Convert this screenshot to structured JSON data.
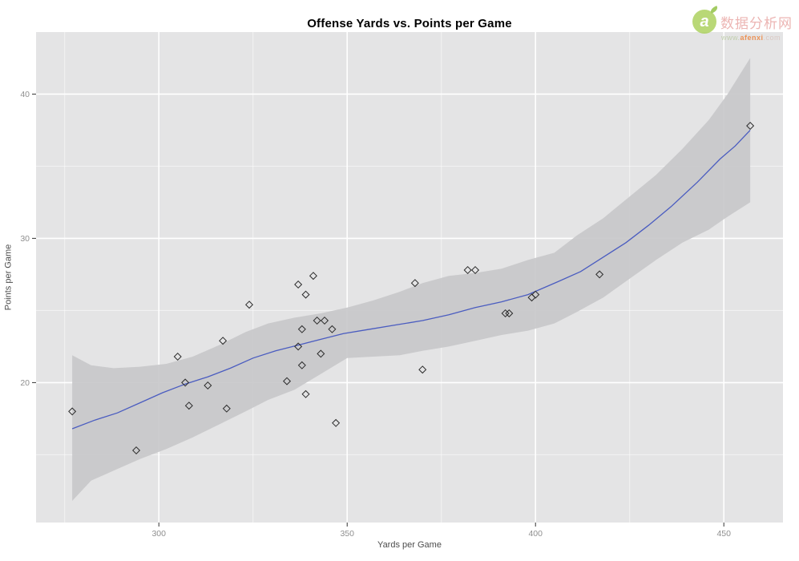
{
  "title": "Offense Yards vs. Points per Game",
  "watermark": {
    "site_name": "数据分析网",
    "logo_letter": "a",
    "url_prefix": "www.",
    "url_brand": "afenxi",
    "url_suffix": ".com",
    "brand_green": "#a8cf56",
    "name_pink": "#e8a3a1",
    "url_orange": "#ee7e33"
  },
  "chart_data": {
    "type": "scatter",
    "title": "Offense Yards vs. Points per Game",
    "xlabel": "Yards per Game",
    "ylabel": "Points per Game",
    "xlim": [
      267.4,
      465.7
    ],
    "ylim": [
      10.3,
      44.3
    ],
    "x_major_ticks": [
      300,
      350,
      400,
      450
    ],
    "x_minor_ticks": [
      275,
      325,
      375,
      425
    ],
    "y_major_ticks": [
      20,
      30,
      40
    ],
    "y_minor_ticks": [
      15,
      25,
      35
    ],
    "grid": true,
    "legend": "none",
    "marker": "open-diamond",
    "smoother": "loess with confidence band",
    "points": [
      [
        277,
        18.0
      ],
      [
        294,
        15.3
      ],
      [
        305,
        21.8
      ],
      [
        307,
        20.0
      ],
      [
        308,
        18.4
      ],
      [
        313,
        19.8
      ],
      [
        317,
        22.9
      ],
      [
        318,
        18.2
      ],
      [
        324,
        25.4
      ],
      [
        334,
        20.1
      ],
      [
        337,
        26.8
      ],
      [
        337,
        22.5
      ],
      [
        338,
        23.7
      ],
      [
        338,
        21.2
      ],
      [
        339,
        26.1
      ],
      [
        339,
        19.2
      ],
      [
        341,
        27.4
      ],
      [
        342,
        24.3
      ],
      [
        343,
        22.0
      ],
      [
        344,
        24.3
      ],
      [
        346,
        23.7
      ],
      [
        347,
        17.2
      ],
      [
        368,
        26.9
      ],
      [
        370,
        20.9
      ],
      [
        382,
        27.8
      ],
      [
        384,
        27.8
      ],
      [
        392,
        24.8
      ],
      [
        393,
        24.8
      ],
      [
        399,
        25.9
      ],
      [
        400,
        26.1
      ],
      [
        417,
        27.5
      ],
      [
        457,
        37.8
      ]
    ],
    "smooth_line": [
      [
        277,
        16.8
      ],
      [
        283,
        17.4
      ],
      [
        289,
        17.9
      ],
      [
        295,
        18.6
      ],
      [
        301,
        19.3
      ],
      [
        307,
        19.9
      ],
      [
        313,
        20.4
      ],
      [
        319,
        21.0
      ],
      [
        325,
        21.7
      ],
      [
        331,
        22.2
      ],
      [
        337,
        22.6
      ],
      [
        343,
        23.0
      ],
      [
        349,
        23.4
      ],
      [
        356,
        23.7
      ],
      [
        363,
        24.0
      ],
      [
        370,
        24.3
      ],
      [
        377,
        24.7
      ],
      [
        384,
        25.2
      ],
      [
        391,
        25.6
      ],
      [
        398,
        26.1
      ],
      [
        406,
        27.0
      ],
      [
        412,
        27.7
      ],
      [
        418,
        28.7
      ],
      [
        424,
        29.7
      ],
      [
        430,
        30.9
      ],
      [
        436,
        32.2
      ],
      [
        443,
        33.9
      ],
      [
        449,
        35.5
      ],
      [
        453,
        36.4
      ],
      [
        457,
        37.5
      ]
    ],
    "confidence_band": {
      "x": [
        277,
        282,
        288,
        295,
        302,
        309,
        316,
        323,
        329,
        336,
        343,
        350,
        357,
        364,
        370,
        377,
        384,
        391,
        398,
        405,
        411,
        418,
        425,
        432,
        439,
        446,
        451,
        457
      ],
      "upper": [
        21.9,
        21.2,
        21.0,
        21.1,
        21.3,
        21.8,
        22.6,
        23.5,
        24.1,
        24.5,
        24.8,
        25.2,
        25.7,
        26.3,
        26.9,
        27.4,
        27.6,
        27.9,
        28.5,
        29.0,
        30.2,
        31.4,
        32.9,
        34.4,
        36.2,
        38.2,
        40.0,
        42.5
      ],
      "lower": [
        11.8,
        13.2,
        13.9,
        14.7,
        15.4,
        16.2,
        17.1,
        18.0,
        18.8,
        19.5,
        20.6,
        21.7,
        21.8,
        21.9,
        22.2,
        22.5,
        22.9,
        23.3,
        23.6,
        24.1,
        24.9,
        25.9,
        27.2,
        28.5,
        29.7,
        30.6,
        31.5,
        32.5
      ]
    },
    "colors": {
      "panel_bg": "#e4e4e5",
      "grid_major": "#ffffff",
      "grid_minor": "#ffffff",
      "band": "#c8c8ca",
      "line": "#4a5cc0",
      "point_stroke": "#2a2a2a",
      "tick_mark": "#333333",
      "tick_label": "#8f8f8f",
      "axis_title": "#4d4d4d",
      "title": "#000000"
    }
  }
}
